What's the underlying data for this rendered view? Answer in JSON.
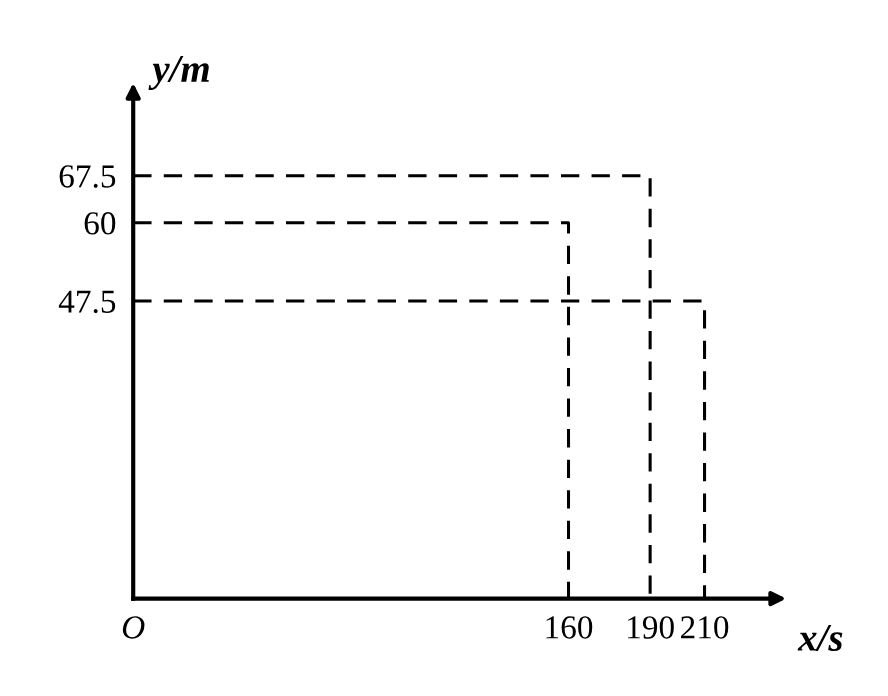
{
  "chart_data": {
    "type": "line",
    "xlabel": "x/s",
    "ylabel": "y/m",
    "series": [
      {
        "color": "#000000",
        "x": [
          0,
          160,
          160
        ],
        "values": [
          60,
          60,
          0
        ]
      },
      {
        "color": "#000000",
        "x": [
          0,
          190,
          190
        ],
        "values": [
          67.5,
          67.5,
          0
        ]
      },
      {
        "color": "#000000",
        "x": [
          0,
          210,
          210
        ],
        "values": [
          47.5,
          47.5,
          0
        ]
      }
    ],
    "line_style": "dashed",
    "xlim": [
      0,
      235
    ],
    "ylim": [
      0,
      80
    ],
    "xticks": [
      {
        "value": 0,
        "label": "O"
      },
      160,
      190,
      210
    ],
    "yticks": [
      47.5,
      60,
      67.5
    ]
  }
}
